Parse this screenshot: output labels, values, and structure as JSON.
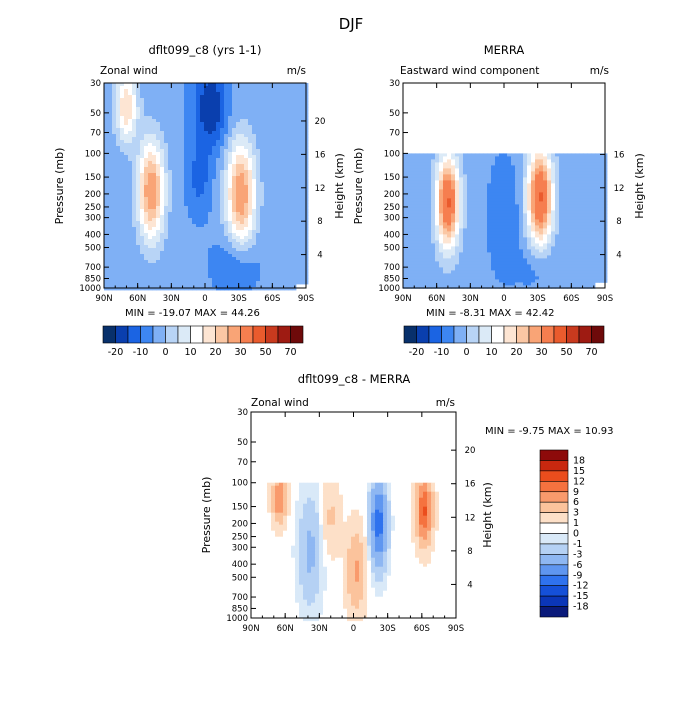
{
  "figure": {
    "title": "DJF"
  },
  "colors": {
    "levels_full": [
      "#08306b",
      "#0a3fae",
      "#1b64e3",
      "#3d86f2",
      "#7fb0f5",
      "#b8d4f6",
      "#dbeaf7",
      "#ffffff",
      "#fde5d3",
      "#fbc7a4",
      "#f9a476",
      "#f67e4f",
      "#ea5b2d",
      "#c93a1e",
      "#9e1b12",
      "#6e0a0a"
    ],
    "levels_diff": [
      "#0a1a7a",
      "#0b36b8",
      "#1550d8",
      "#2f72ee",
      "#5f96f0",
      "#8eb7f2",
      "#b5d1f4",
      "#d9e9f8",
      "#ffffff",
      "#fde0c8",
      "#fbc39c",
      "#f99a6c",
      "#f5723f",
      "#eb4d1d",
      "#c9280f",
      "#8d0a0a"
    ]
  },
  "chart_data": [
    {
      "type": "heatmap",
      "title": "dflt099_c8 (yrs 1-1)",
      "left_label": "Zonal wind",
      "right_label": "m/s",
      "xlabel": "",
      "ylabel": "Pressure (mb)",
      "y2label": "Height (km)",
      "x_ticks": [
        "90N",
        "60N",
        "30N",
        "0",
        "30S",
        "60S",
        "90S"
      ],
      "y_ticks": [
        "30",
        "50",
        "70",
        "100",
        "150",
        "200",
        "250",
        "300",
        "400",
        "500",
        "700",
        "850",
        "1000"
      ],
      "y2_ticks": [
        "20",
        "16",
        "12",
        "8",
        "4"
      ],
      "stats": "MIN = -19.07   MAX =  44.26",
      "colorbar": {
        "ticks": [
          "-20",
          "-10",
          "0",
          "10",
          "20",
          "30",
          "50",
          "70"
        ],
        "levels": [
          -25,
          -20,
          -15,
          -10,
          -5,
          0,
          5,
          10,
          15,
          20,
          25,
          30,
          40,
          50,
          60,
          70
        ]
      },
      "top_pressure": 30,
      "features": [
        {
          "kind": "westerly jet",
          "lat": -32,
          "pressure": 200,
          "value": 30
        },
        {
          "kind": "westerly jet",
          "lat": 48,
          "pressure": 200,
          "value": 30
        },
        {
          "kind": "westerly jet",
          "lat": 68,
          "pressure": 50,
          "value": 20
        },
        {
          "kind": "easterlies",
          "lat": -8,
          "pressure": 40,
          "value": -19
        },
        {
          "kind": "easterlies",
          "lat": -30,
          "pressure": 600,
          "value": -8
        }
      ]
    },
    {
      "type": "heatmap",
      "title": "MERRA",
      "left_label": "Eastward wind component",
      "right_label": "m/s",
      "xlabel": "",
      "ylabel": "Pressure (mb)",
      "y2label": "Height (km)",
      "x_ticks": [
        "90N",
        "60N",
        "30N",
        "0",
        "30S",
        "60S",
        "90S"
      ],
      "y_ticks": [
        "30",
        "50",
        "70",
        "100",
        "150",
        "200",
        "250",
        "300",
        "400",
        "500",
        "700",
        "850",
        "1000"
      ],
      "y2_ticks": [
        "16",
        "12",
        "8",
        "4"
      ],
      "stats": "MIN =  -8.31   MAX =  42.42",
      "colorbar": {
        "ticks": [
          "-20",
          "-10",
          "0",
          "10",
          "20",
          "30",
          "50",
          "70"
        ],
        "levels": [
          -25,
          -20,
          -15,
          -10,
          -5,
          0,
          5,
          10,
          15,
          20,
          25,
          30,
          40,
          50,
          60,
          70
        ]
      },
      "top_pressure": 100,
      "features": [
        {
          "kind": "westerly jet",
          "lat": -32,
          "pressure": 200,
          "value": 40
        },
        {
          "kind": "westerly jet",
          "lat": 50,
          "pressure": 220,
          "value": 40
        },
        {
          "kind": "easterlies",
          "lat": -5,
          "pressure": 300,
          "value": -8
        }
      ]
    },
    {
      "type": "heatmap",
      "title": "dflt099_c8 - MERRA",
      "left_label": "Zonal wind",
      "right_label": "m/s",
      "xlabel": "",
      "ylabel": "Pressure (mb)",
      "y2label": "Height (km)",
      "x_ticks": [
        "90N",
        "60N",
        "30N",
        "0",
        "30S",
        "60S",
        "90S"
      ],
      "y_ticks": [
        "30",
        "50",
        "70",
        "100",
        "150",
        "200",
        "250",
        "300",
        "400",
        "500",
        "700",
        "850",
        "1000"
      ],
      "y2_ticks": [
        "20",
        "16",
        "12",
        "8",
        "4"
      ],
      "stats": "MIN =  -9.75   MAX =  10.93",
      "colorbar": {
        "ticks": [
          "18",
          "15",
          "12",
          "9",
          "6",
          "3",
          "1",
          "0",
          "-1",
          "-3",
          "-6",
          "-9",
          "-12",
          "-15",
          "-18"
        ],
        "levels": [
          -18,
          -15,
          -12,
          -9,
          -6,
          -3,
          -1,
          0,
          1,
          3,
          6,
          9,
          12,
          15,
          18
        ]
      },
      "top_pressure": 100,
      "features": [
        {
          "kind": "positive",
          "lat": -62,
          "pressure": 150,
          "value": 10
        },
        {
          "kind": "positive",
          "lat": 65,
          "pressure": 130,
          "value": 8
        },
        {
          "kind": "positive",
          "lat": -2,
          "pressure": 450,
          "value": 5
        },
        {
          "kind": "negative",
          "lat": -22,
          "pressure": 180,
          "value": -9
        },
        {
          "kind": "negative",
          "lat": 38,
          "pressure": 300,
          "value": -3
        }
      ]
    }
  ]
}
